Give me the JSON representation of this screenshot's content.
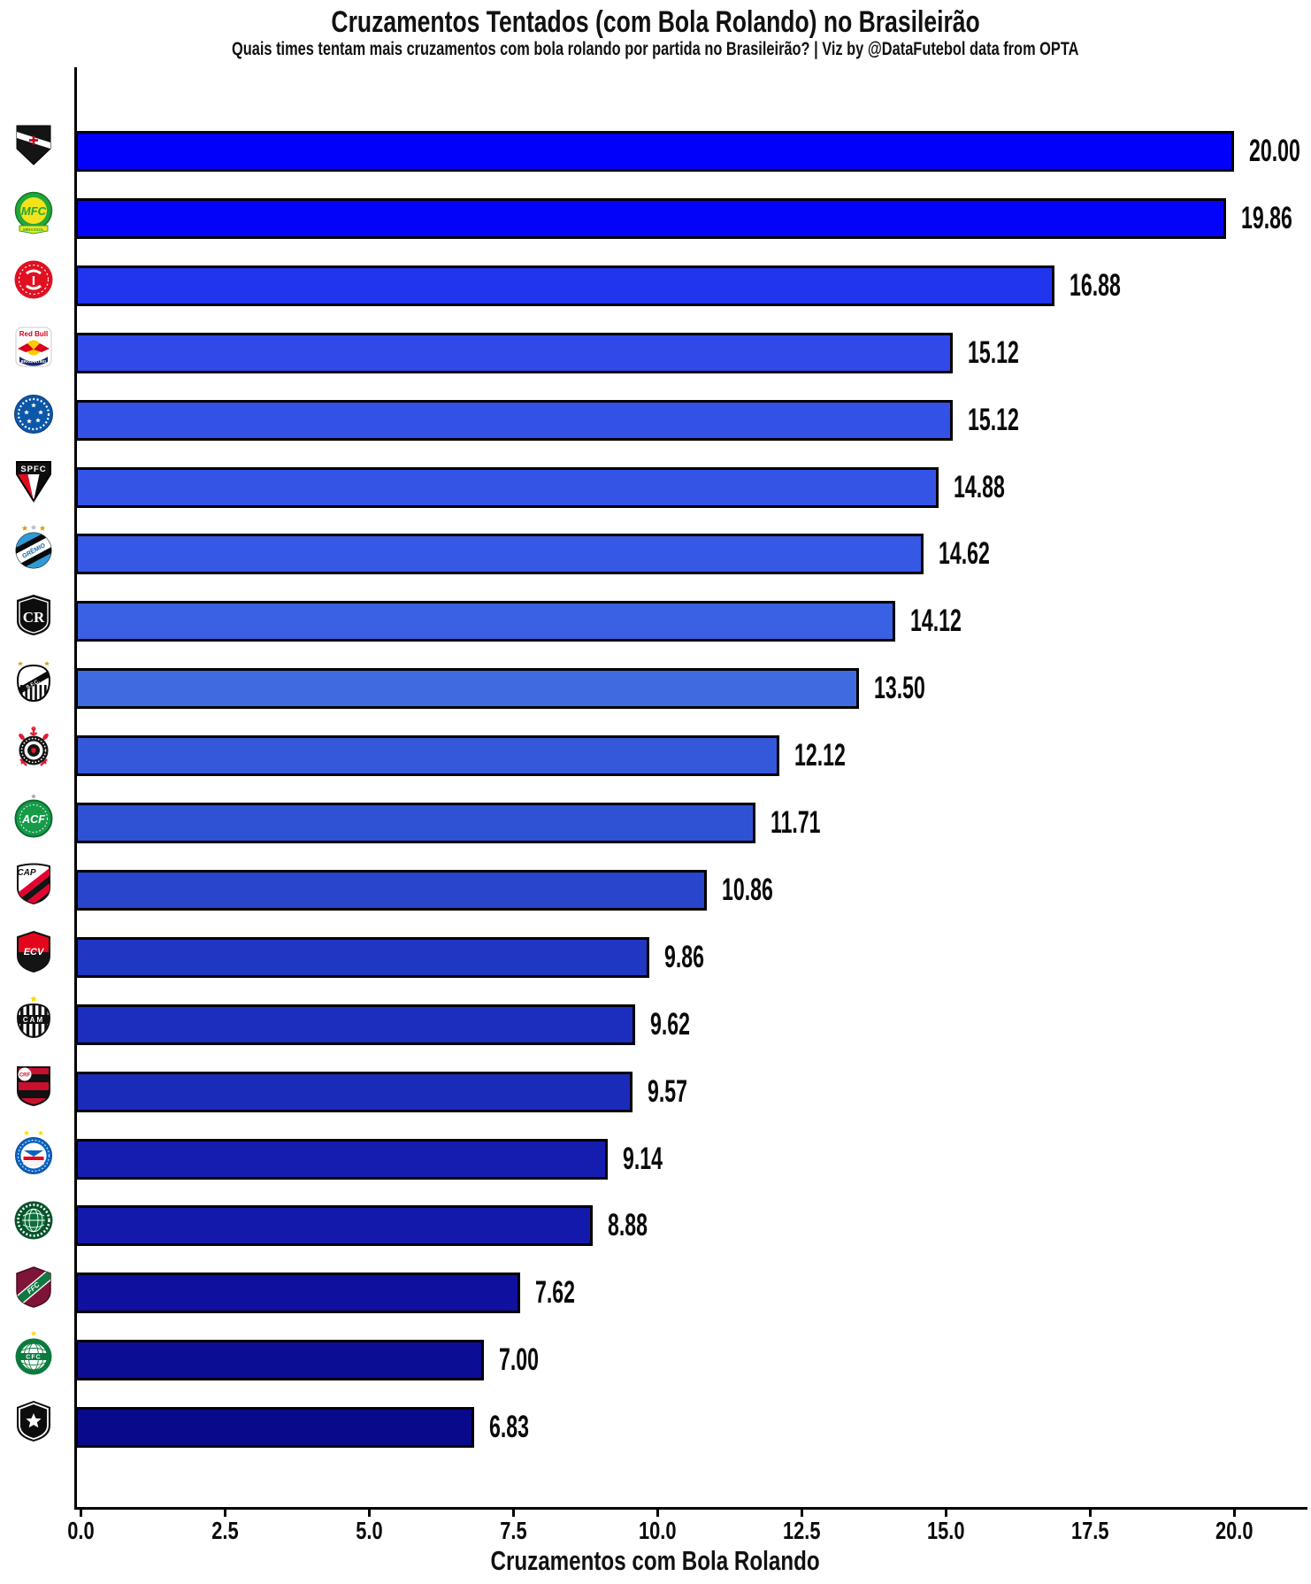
{
  "header": {
    "title": "Cruzamentos Tentados (com Bola Rolando) no Brasileirão",
    "subtitle": "Quais times tentam mais cruzamentos com bola rolando por partida no Brasileirão? | Viz by @DataFutebol data from OPTA"
  },
  "chart_data": {
    "type": "bar",
    "orientation": "horizontal",
    "title": "Cruzamentos Tentados (com Bola Rolando) no Brasileirão",
    "subtitle": "Quais times tentam mais cruzamentos com bola rolando por partida no Brasileirão? | Viz by @DataFutebol data from OPTA",
    "xlabel": "Cruzamentos com Bola Rolando",
    "xlim": [
      0,
      21.3
    ],
    "x_ticks": [
      "0.0",
      "2.5",
      "5.0",
      "7.5",
      "10.0",
      "12.5",
      "15.0",
      "17.5",
      "20.0"
    ],
    "grid": false,
    "legend": "none",
    "categories": [
      "Vasco da Gama",
      "Mirassol",
      "Internacional",
      "Red Bull Bragantino",
      "Cruzeiro",
      "São Paulo",
      "Grêmio",
      "Remo",
      "Santos",
      "Corinthians",
      "Chapecoense",
      "Athletico Paranaense",
      "Vitória",
      "Atlético Mineiro",
      "Flamengo",
      "Bahia",
      "Palmeiras",
      "Fluminense",
      "Coritiba",
      "Botafogo"
    ],
    "team_ids": [
      "vasco",
      "mirassol",
      "internacional",
      "bragantino",
      "cruzeiro",
      "sao-paulo",
      "gremio",
      "remo",
      "santos",
      "corinthians",
      "chapecoense",
      "athletico-pr",
      "vitoria",
      "atletico-mg",
      "flamengo",
      "bahia",
      "palmeiras",
      "fluminense",
      "coritiba",
      "botafogo"
    ],
    "values": [
      20.0,
      19.86,
      16.88,
      15.12,
      15.12,
      14.88,
      14.62,
      14.12,
      13.5,
      12.12,
      11.71,
      10.86,
      9.86,
      9.62,
      9.57,
      9.14,
      8.88,
      7.62,
      7.0,
      6.83
    ],
    "value_labels": [
      "20.00",
      "19.86",
      "16.88",
      "15.12",
      "15.12",
      "14.88",
      "14.62",
      "14.12",
      "13.50",
      "12.12",
      "11.71",
      "10.86",
      "9.86",
      "9.62",
      "9.57",
      "9.14",
      "8.88",
      "7.62",
      "7.00",
      "6.83"
    ],
    "bar_colors": [
      "#0101FB",
      "#0303F9",
      "#2134EE",
      "#3049E8",
      "#3350E7",
      "#3454E6",
      "#3558E5",
      "#3A60E3",
      "#3E6BE0",
      "#3558DA",
      "#2F51D3",
      "#2845CB",
      "#2037C3",
      "#1C2EBD",
      "#1B2BB9",
      "#151DB0",
      "#131AAB",
      "#0F119E",
      "#0C0D95",
      "#09098C"
    ],
    "bar_border_color": "#000000",
    "axis_color": "#000000",
    "background_color": "#FFFFFF"
  }
}
